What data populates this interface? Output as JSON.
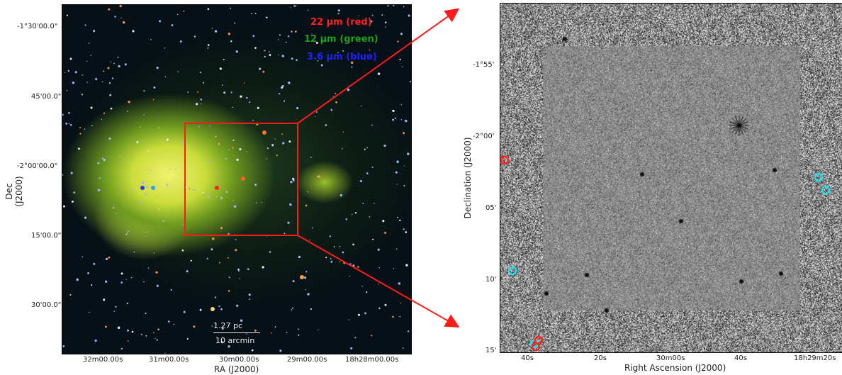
{
  "left_panel": {
    "legend": {
      "red": "22 μm (red)",
      "green": "12 μm (green)",
      "blue": "3.6 μm (blue)"
    },
    "scalebar": {
      "physical": "1.27 pc",
      "angular": "10 arcmin"
    },
    "y_ticks": [
      "-1°30'00.0\"",
      "45'00.0\"",
      "-2°00'00.0\"",
      "15'00.0\"",
      "30'00.0\""
    ],
    "x_ticks": [
      "32m00.00s",
      "31m00.00s",
      "30m00.00s",
      "29m00.00s",
      "18h28m00.00s"
    ],
    "xlabel": "RA (J2000)",
    "ylabel": "Dec (J2000)",
    "colors": {
      "red": "#ff2020",
      "green": "#1aa01a",
      "blue": "#2020ff"
    }
  },
  "right_panel": {
    "y_ticks": [
      "-1°55'",
      "-2°00'",
      "05'",
      "10'",
      "15'"
    ],
    "x_ticks": [
      "40s",
      "20s",
      "30m00s",
      "40s",
      "18h29m20s"
    ],
    "xlabel": "Right Ascension (J2000)",
    "ylabel": "Declination (J2000)",
    "marker_colors": {
      "red": "#ff2020",
      "cyan": "#20e0f0"
    }
  }
}
